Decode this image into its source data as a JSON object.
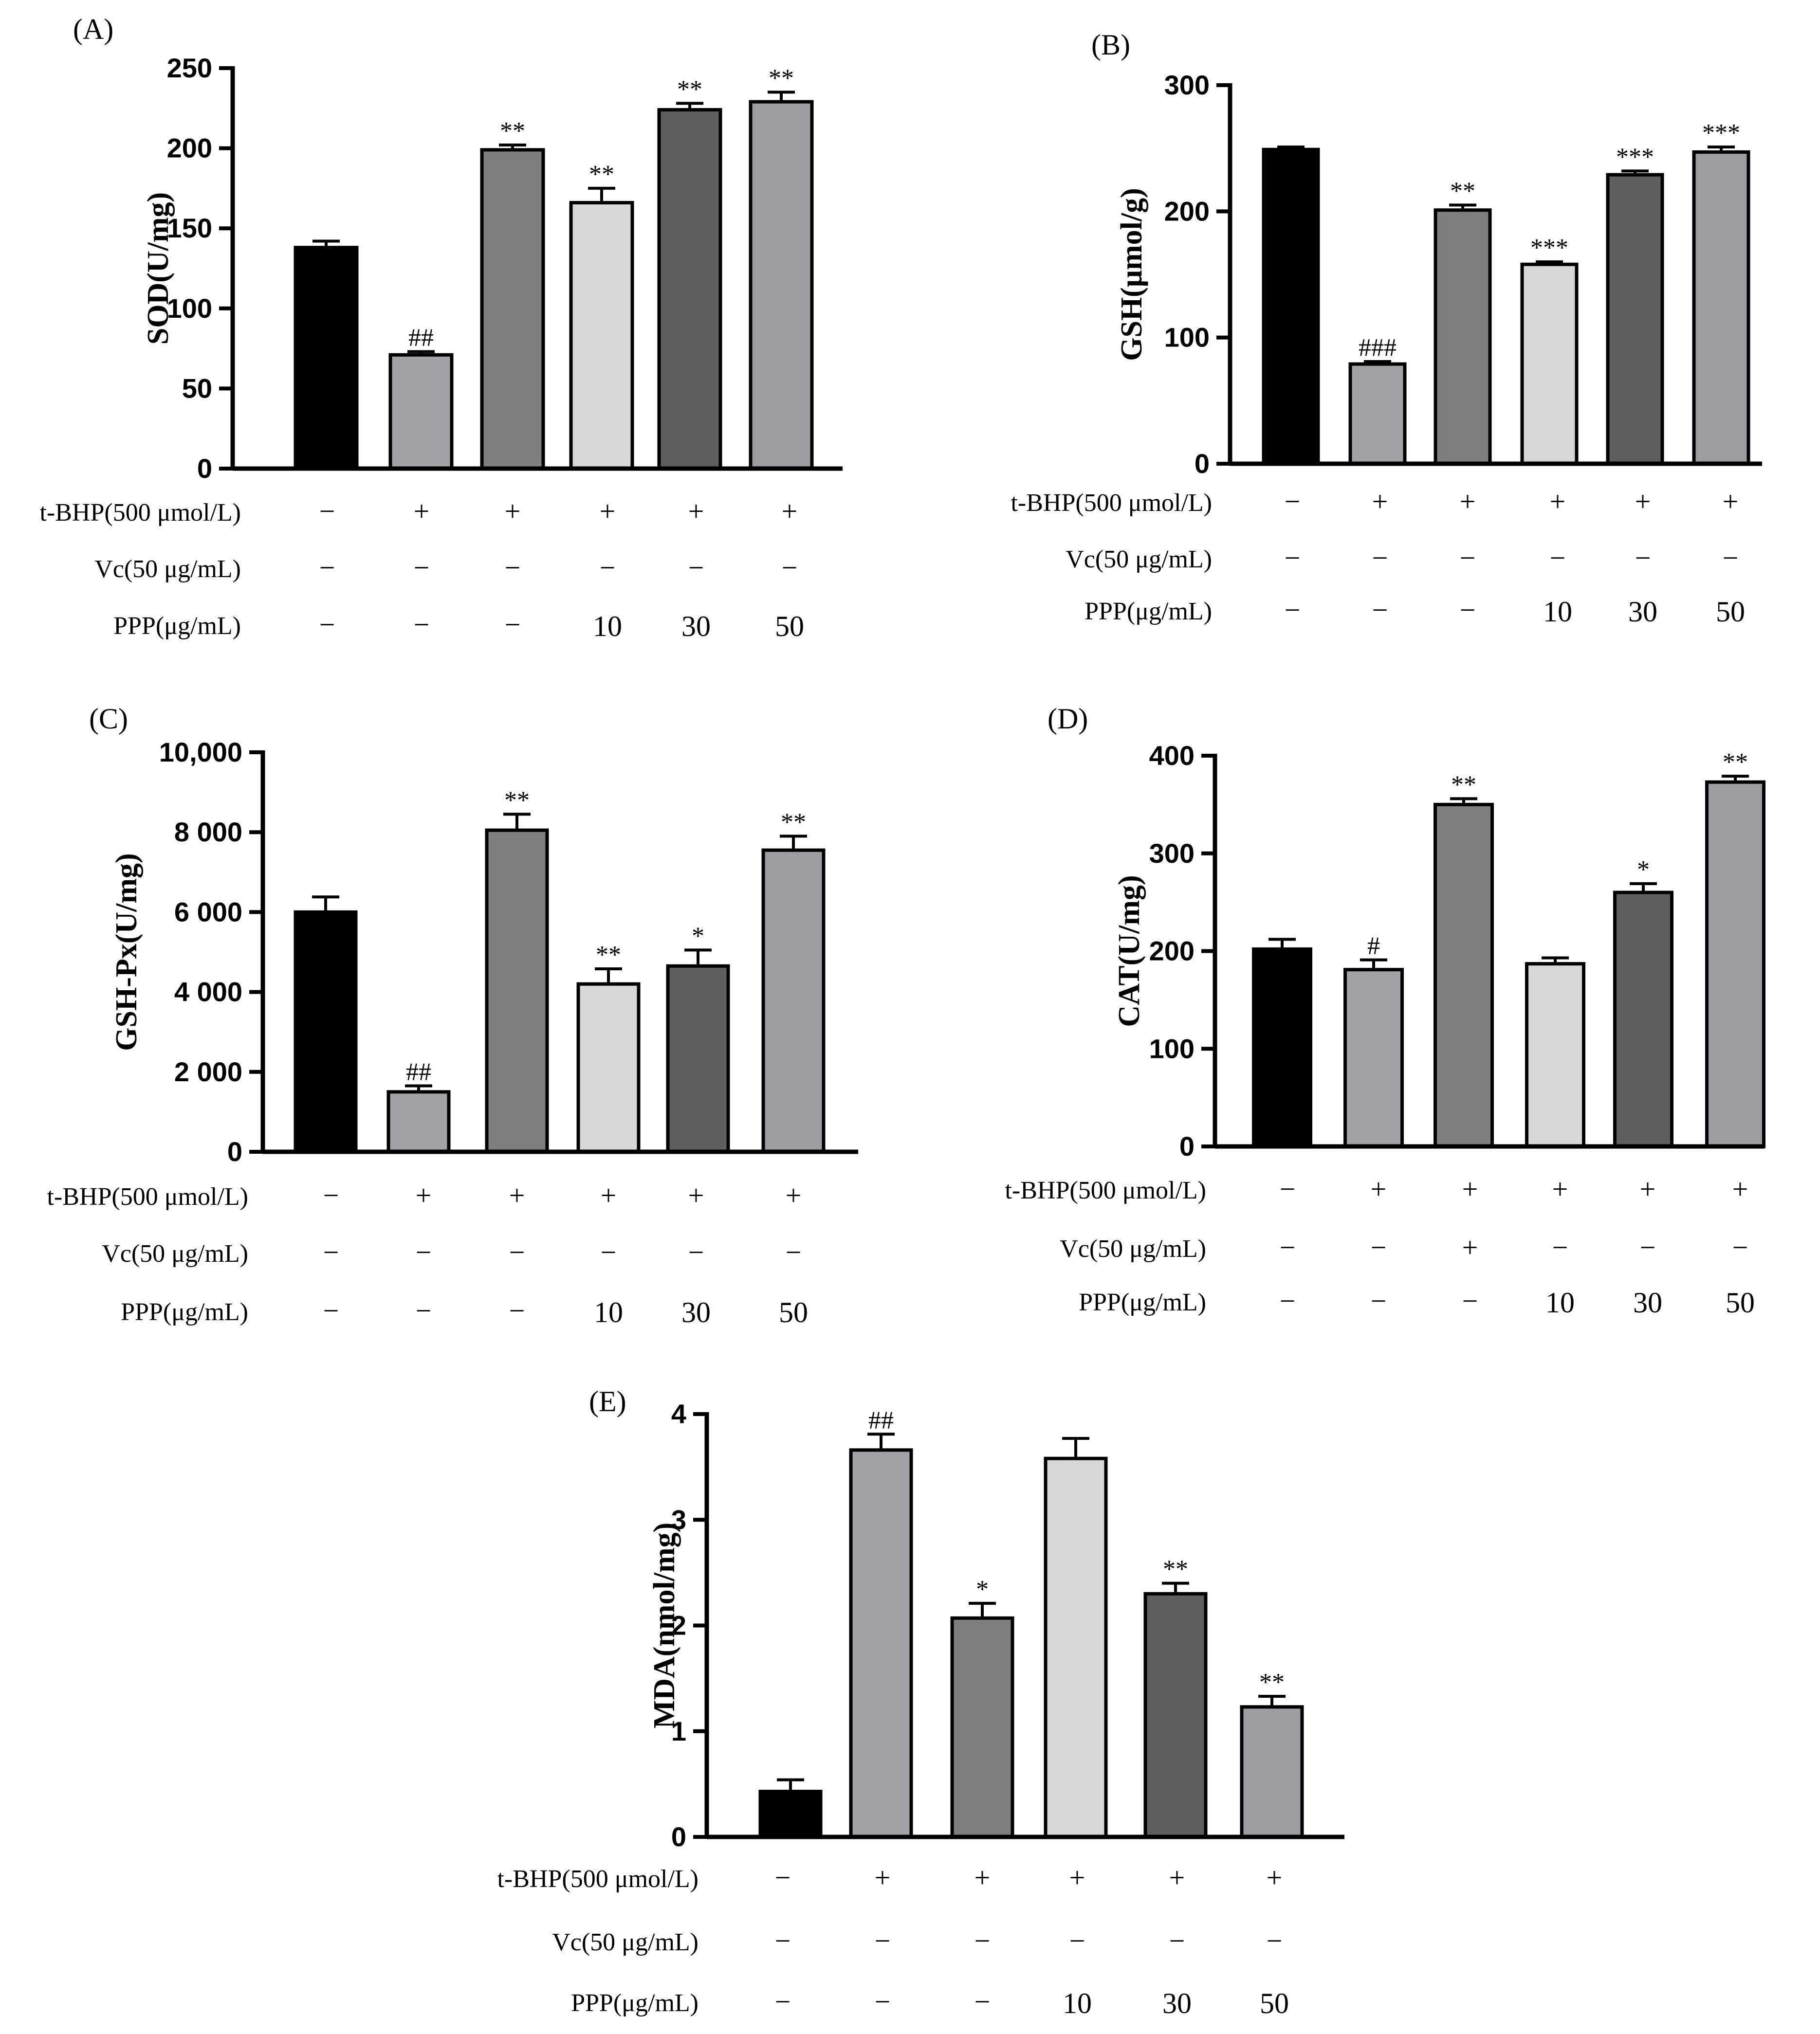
{
  "figure": {
    "description_free": true,
    "bar_colors": [
      "#000000",
      "#a2a2a6",
      "#7f7f7f",
      "#d7d7d7",
      "#5e5e5e",
      "#9d9da1"
    ]
  },
  "chart_data": [
    {
      "panel": "(A)",
      "type": "bar",
      "ylabel": "SOD(U/mg)",
      "ylim": [
        0,
        250
      ],
      "yticks": [
        0,
        50,
        100,
        150,
        200,
        250
      ],
      "ytick_labels": [
        "0",
        "50",
        "100",
        "150",
        "200",
        "250"
      ],
      "values": [
        138,
        71,
        199,
        166,
        224,
        229
      ],
      "errors": [
        4,
        2,
        3,
        9,
        4,
        6
      ],
      "annotations": [
        "",
        "##",
        "**",
        "**",
        "**",
        "**"
      ],
      "rows": [
        {
          "label": "t-BHP(500 μmol/L)",
          "cells": [
            "−",
            "+",
            "+",
            "+",
            "+",
            "+"
          ]
        },
        {
          "label": "Vc(50 μg/mL)",
          "cells": [
            "−",
            "−",
            "−",
            "−",
            "−",
            "−"
          ]
        },
        {
          "label": "PPP(μg/mL)",
          "cells": [
            "−",
            "−",
            "−",
            "10",
            "30",
            "50"
          ]
        }
      ]
    },
    {
      "panel": "(B)",
      "type": "bar",
      "ylabel": "GSH(μmol/g)",
      "ylim": [
        0,
        300
      ],
      "yticks": [
        0,
        100,
        200,
        300
      ],
      "ytick_labels": [
        "0",
        "100",
        "200",
        "300"
      ],
      "values": [
        249,
        79,
        201,
        158,
        229,
        247
      ],
      "errors": [
        2,
        2,
        4,
        2,
        3,
        4
      ],
      "annotations": [
        "",
        "###",
        "**",
        "***",
        "***",
        "***"
      ],
      "rows": [
        {
          "label": "t-BHP(500 μmol/L)",
          "cells": [
            "−",
            "+",
            "+",
            "+",
            "+",
            "+"
          ]
        },
        {
          "label": "Vc(50 μg/mL)",
          "cells": [
            "−",
            "−",
            "−",
            "−",
            "−",
            "−"
          ]
        },
        {
          "label": "PPP(μg/mL)",
          "cells": [
            "−",
            "−",
            "−",
            "10",
            "30",
            "50"
          ]
        }
      ]
    },
    {
      "panel": "(C)",
      "type": "bar",
      "ylabel": "GSH-Px(U/mg)",
      "ylim": [
        0,
        10000
      ],
      "yticks": [
        0,
        2000,
        4000,
        6000,
        8000,
        10000
      ],
      "ytick_labels": [
        "0",
        "2 000",
        "4 000",
        "6 000",
        "8 000",
        "10,000"
      ],
      "values": [
        6000,
        1500,
        8050,
        4200,
        4650,
        7550
      ],
      "errors": [
        380,
        150,
        400,
        380,
        400,
        350
      ],
      "annotations": [
        "",
        "##",
        "**",
        "**",
        "*",
        "**"
      ],
      "rows": [
        {
          "label": "t-BHP(500 μmol/L)",
          "cells": [
            "−",
            "+",
            "+",
            "+",
            "+",
            "+"
          ]
        },
        {
          "label": "Vc(50 μg/mL)",
          "cells": [
            "−",
            "−",
            "−",
            "−",
            "−",
            "−"
          ]
        },
        {
          "label": "PPP(μg/mL)",
          "cells": [
            "−",
            "−",
            "−",
            "10",
            "30",
            "50"
          ]
        }
      ]
    },
    {
      "panel": "(D)",
      "type": "bar",
      "ylabel": "CAT(U/mg)",
      "ylim": [
        0,
        400
      ],
      "yticks": [
        0,
        100,
        200,
        300,
        400
      ],
      "ytick_labels": [
        "0",
        "100",
        "200",
        "300",
        "400"
      ],
      "values": [
        202,
        181,
        350,
        187,
        260,
        373
      ],
      "errors": [
        10,
        10,
        6,
        6,
        9,
        6
      ],
      "annotations": [
        "",
        "#",
        "**",
        "",
        "*",
        "**"
      ],
      "rows": [
        {
          "label": "t-BHP(500 μmol/L)",
          "cells": [
            "−",
            "+",
            "+",
            "+",
            "+",
            "+"
          ]
        },
        {
          "label": "Vc(50 μg/mL)",
          "cells": [
            "−",
            "−",
            "+",
            "−",
            "−",
            "−"
          ]
        },
        {
          "label": "PPP(μg/mL)",
          "cells": [
            "−",
            "−",
            "−",
            "10",
            "30",
            "50"
          ]
        }
      ]
    },
    {
      "panel": "(E)",
      "type": "bar",
      "ylabel": "MDA(nmol/mg)",
      "ylim": [
        0,
        4
      ],
      "yticks": [
        0,
        1,
        2,
        3,
        4
      ],
      "ytick_labels": [
        "0",
        "1",
        "2",
        "3",
        "4"
      ],
      "values": [
        0.43,
        3.66,
        2.07,
        3.58,
        2.3,
        1.23
      ],
      "errors": [
        0.11,
        0.15,
        0.14,
        0.19,
        0.1,
        0.1
      ],
      "annotations": [
        "",
        "##",
        "*",
        "",
        "**",
        "**"
      ],
      "rows": [
        {
          "label": "t-BHP(500 μmol/L)",
          "cells": [
            "−",
            "+",
            "+",
            "+",
            "+",
            "+"
          ]
        },
        {
          "label": "Vc(50 μg/mL)",
          "cells": [
            "−",
            "−",
            "−",
            "−",
            "−",
            "−"
          ]
        },
        {
          "label": "PPP(μg/mL)",
          "cells": [
            "−",
            "−",
            "−",
            "10",
            "30",
            "50"
          ]
        }
      ]
    }
  ]
}
